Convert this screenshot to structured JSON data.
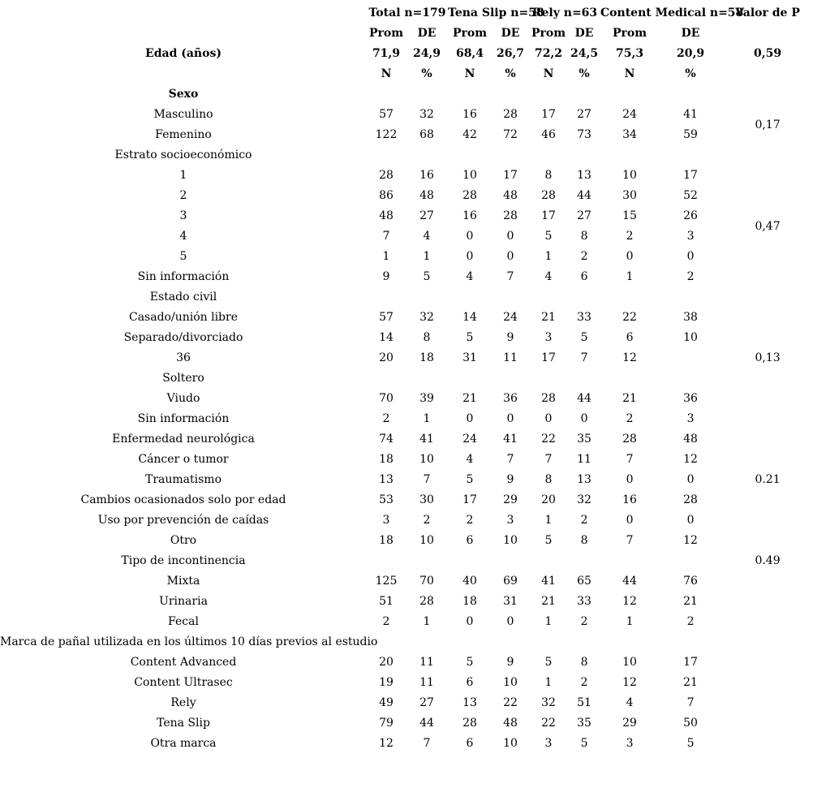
{
  "table": {
    "column_groups": [
      {
        "label": "Total n=179",
        "span": 2
      },
      {
        "label": "Tena Slip n=58",
        "span": 2
      },
      {
        "label": "Rely n=63",
        "span": 2
      },
      {
        "label": "Content Medical n=58",
        "span": 2
      },
      {
        "label": "Valor de P",
        "span": 1
      }
    ],
    "rows": [
      {
        "label": "",
        "bold": true,
        "values": [
          "Prom",
          "DE",
          "Prom",
          "DE",
          "Prom",
          "DE",
          "Prom",
          "DE"
        ],
        "p": ""
      },
      {
        "label": "Edad (años)",
        "bold": true,
        "values": [
          "71,9",
          "24,9",
          "68,4",
          "26,7",
          "72,2",
          "24,5",
          "75,3",
          "20,9"
        ],
        "p": "0,59"
      },
      {
        "label": "",
        "bold": true,
        "values": [
          "N",
          "%",
          "N",
          "%",
          "N",
          "%",
          "N",
          "%"
        ],
        "p": ""
      },
      {
        "label": "Sexo",
        "bold": true,
        "values": [],
        "p": ""
      },
      {
        "label": "Masculino",
        "values": [
          "57",
          "32",
          "16",
          "28",
          "17",
          "27",
          "24",
          "41"
        ],
        "p": "0,17",
        "p_rowspan": 2
      },
      {
        "label": "Femenino",
        "values": [
          "122",
          "68",
          "42",
          "72",
          "46",
          "73",
          "34",
          "59"
        ],
        "p_skip": true
      },
      {
        "label": "Estrato socioeconómico",
        "values": [],
        "p": ""
      },
      {
        "label": "1",
        "values": [
          "28",
          "16",
          "10",
          "17",
          "8",
          "13",
          "10",
          "17"
        ],
        "p": "0,47",
        "p_rowspan": 6
      },
      {
        "label": "2",
        "values": [
          "86",
          "48",
          "28",
          "48",
          "28",
          "44",
          "30",
          "52"
        ],
        "p_skip": true
      },
      {
        "label": "3",
        "values": [
          "48",
          "27",
          "16",
          "28",
          "17",
          "27",
          "15",
          "26"
        ],
        "p_skip": true
      },
      {
        "label": "4",
        "values": [
          "7",
          "4",
          "0",
          "0",
          "5",
          "8",
          "2",
          "3"
        ],
        "p_skip": true
      },
      {
        "label": "5",
        "values": [
          "1",
          "1",
          "0",
          "0",
          "1",
          "2",
          "0",
          "0"
        ],
        "p_skip": true
      },
      {
        "label": "Sin información",
        "values": [
          "9",
          "5",
          "4",
          "7",
          "4",
          "6",
          "1",
          "2"
        ],
        "p_skip": true
      },
      {
        "label": "Estado civil",
        "values": [],
        "p": ""
      },
      {
        "label": "Casado/unión libre",
        "values": [
          "57",
          "32",
          "14",
          "24",
          "21",
          "33",
          "22",
          "38"
        ],
        "p": ""
      },
      {
        "label": "Separado/divorciado",
        "values": [
          "14",
          "8",
          "5",
          "9",
          "3",
          "5",
          "6",
          "10"
        ],
        "p": ""
      },
      {
        "label": "36",
        "values": [
          "20",
          "18",
          "31",
          "11",
          "17",
          "7",
          "12",
          ""
        ],
        "p": "0,13"
      },
      {
        "label": "Soltero",
        "values": [],
        "p": ""
      },
      {
        "label": "Viudo",
        "values": [
          "70",
          "39",
          "21",
          "36",
          "28",
          "44",
          "21",
          "36"
        ],
        "p": ""
      },
      {
        "label": "Sin información",
        "values": [
          "2",
          "1",
          "0",
          "0",
          "0",
          "0",
          "2",
          "3"
        ],
        "p": ""
      },
      {
        "label": "Enfermedad neurológica",
        "values": [
          "74",
          "41",
          "24",
          "41",
          "22",
          "35",
          "28",
          "48"
        ],
        "p": ""
      },
      {
        "label": "Cáncer o tumor",
        "values": [
          "18",
          "10",
          "4",
          "7",
          "7",
          "11",
          "7",
          "12"
        ],
        "p": ""
      },
      {
        "label": "Traumatismo",
        "values": [
          "13",
          "7",
          "5",
          "9",
          "8",
          "13",
          "0",
          "0"
        ],
        "p": "0.21"
      },
      {
        "label": "Cambios ocasionados solo por edad",
        "values": [
          "53",
          "30",
          "17",
          "29",
          "20",
          "32",
          "16",
          "28"
        ],
        "p": ""
      },
      {
        "label": "Uso por prevención de caídas",
        "values": [
          "3",
          "2",
          "2",
          "3",
          "1",
          "2",
          "0",
          "0"
        ],
        "p": ""
      },
      {
        "label": "Otro",
        "values": [
          "18",
          "10",
          "6",
          "10",
          "5",
          "8",
          "7",
          "12"
        ],
        "p": ""
      },
      {
        "label": "Tipo de incontinencia",
        "values": [],
        "p": "0.49"
      },
      {
        "label": "Mixta",
        "values": [
          "125",
          "70",
          "40",
          "69",
          "41",
          "65",
          "44",
          "76"
        ],
        "p": ""
      },
      {
        "label": "Urinaria",
        "values": [
          "51",
          "28",
          "18",
          "31",
          "21",
          "33",
          "12",
          "21"
        ],
        "p": ""
      },
      {
        "label": "Fecal",
        "values": [
          "2",
          "1",
          "0",
          "0",
          "1",
          "2",
          "1",
          "2"
        ],
        "p": ""
      },
      {
        "label": "Marca de pañal utilizada en los últimos 10 días previos al estudio",
        "values": [],
        "p": ""
      },
      {
        "label": "Content Advanced",
        "values": [
          "20",
          "11",
          "5",
          "9",
          "5",
          "8",
          "10",
          "17"
        ],
        "p": ""
      },
      {
        "label": "Content Ultrasec",
        "values": [
          "19",
          "11",
          "6",
          "10",
          "1",
          "2",
          "12",
          "21"
        ],
        "p": ""
      },
      {
        "label": "Rely",
        "values": [
          "49",
          "27",
          "13",
          "22",
          "32",
          "51",
          "4",
          "7"
        ],
        "p": ""
      },
      {
        "label": "Tena Slip",
        "values": [
          "79",
          "44",
          "28",
          "48",
          "22",
          "35",
          "29",
          "50"
        ],
        "p": ""
      },
      {
        "label": "Otra marca",
        "values": [
          "12",
          "7",
          "6",
          "10",
          "3",
          "5",
          "3",
          "5"
        ],
        "p": ""
      }
    ]
  }
}
